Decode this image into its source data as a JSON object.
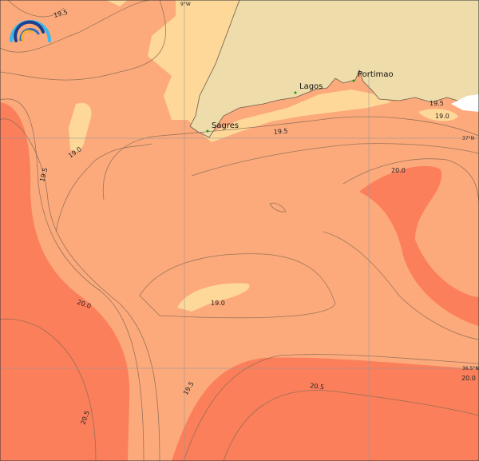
{
  "map": {
    "colors": {
      "land": "#eedcaa",
      "sst_18_5_19": "#fdd898",
      "sst_19_20": "#fcaa7b",
      "sst_20_20_5": "#fb7f5a",
      "no_data": "#ffffff",
      "contour": "#8a6a55"
    },
    "gridlines": {
      "longitude": "9°W",
      "latitude_1": "37°N",
      "latitude_2": "36.5°N"
    },
    "cities": [
      {
        "name": "Sagres"
      },
      {
        "name": "Lagos"
      },
      {
        "name": "Portimao"
      }
    ],
    "contour_labels": [
      "19.5",
      "19.0",
      "19.5",
      "19.5",
      "19.0",
      "19.5",
      "20.0",
      "20.0",
      "19.0",
      "20.5",
      "19.5",
      "20.0",
      "20.5"
    ],
    "logo": "rainbow-arcs-logo"
  }
}
